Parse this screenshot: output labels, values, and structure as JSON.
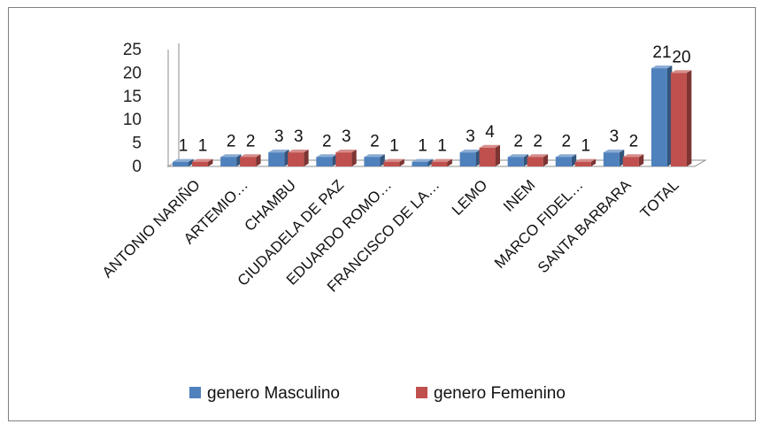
{
  "chart_data": {
    "type": "bar",
    "categories": [
      "ANTONIO NARIÑO",
      "ARTEMIO…",
      "CHAMBU",
      "CIUDADELA DE PAZ",
      "EDUARDO ROMO…",
      "FRANCISCO DE LA…",
      "LEMO",
      "INEM",
      "MARCO FIDEL…",
      "SANTA BARBARA",
      "TOTAL"
    ],
    "series": [
      {
        "name": "genero Masculino",
        "values": [
          1,
          2,
          3,
          2,
          2,
          1,
          3,
          2,
          2,
          3,
          21
        ],
        "color": "#4f81bd"
      },
      {
        "name": "genero Femenino",
        "values": [
          1,
          2,
          3,
          3,
          1,
          1,
          4,
          2,
          1,
          2,
          20
        ],
        "color": "#c0504d"
      }
    ],
    "yticks": [
      "0",
      "5",
      "10",
      "15",
      "20",
      "25"
    ],
    "ylim": [
      0,
      25
    ],
    "grid": false,
    "legend_position": "bottom",
    "data_labels": true
  }
}
